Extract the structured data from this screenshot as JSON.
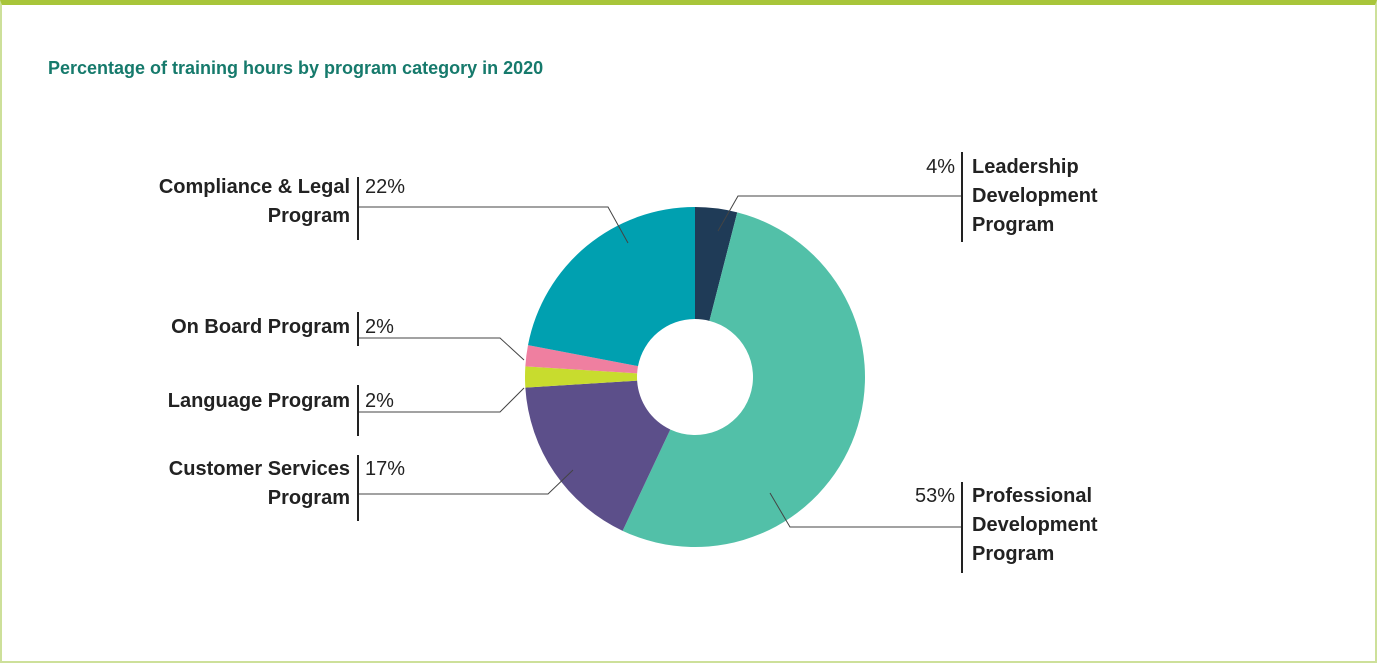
{
  "chart_data": {
    "type": "pie",
    "title": "Percentage of training hours by program category in 2020",
    "categories": [
      "Leadership Development Program",
      "Professional Development Program",
      "Customer Services Program",
      "Language Program",
      "On Board Program",
      "Compliance & Legal Program"
    ],
    "values": [
      4,
      53,
      17,
      2,
      2,
      22
    ],
    "value_labels": [
      "4%",
      "53%",
      "17%",
      "2%",
      "2%",
      "22%"
    ],
    "colors": [
      "#1f3b57",
      "#52c0a8",
      "#5c4f8a",
      "#c8dc2e",
      "#ef7fa0",
      "#00a0b0"
    ]
  }
}
